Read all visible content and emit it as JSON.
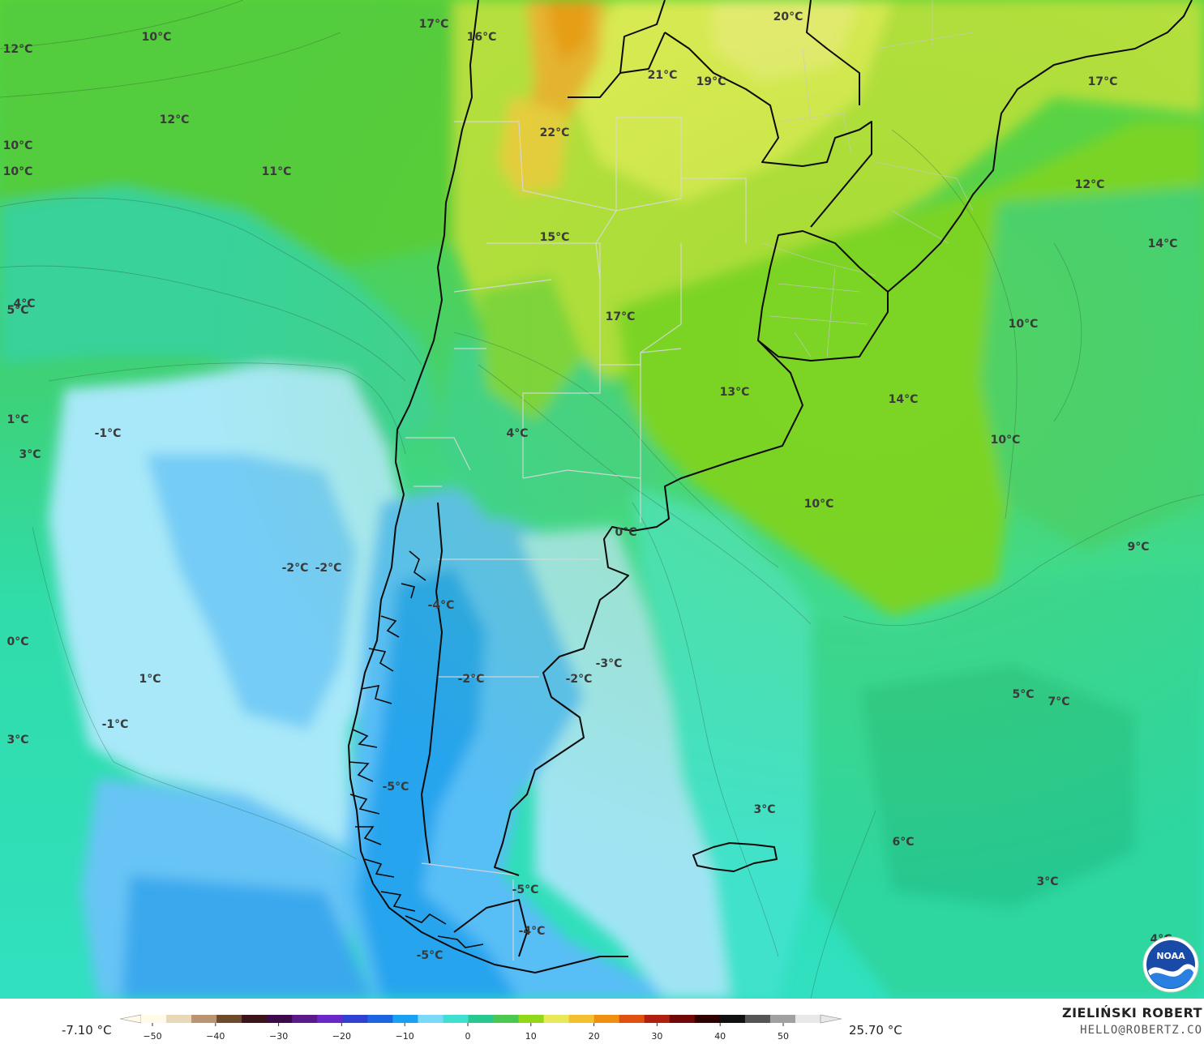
{
  "map": {
    "labels": [
      {
        "id": "l01",
        "text": "17°C"
      },
      {
        "id": "l02",
        "text": "16°C"
      },
      {
        "id": "l03",
        "text": "20°C"
      },
      {
        "id": "l04",
        "text": "10°C"
      },
      {
        "id": "l05",
        "text": "12°C"
      },
      {
        "id": "l06",
        "text": "21°C"
      },
      {
        "id": "l07",
        "text": "19°C"
      },
      {
        "id": "l08",
        "text": "17°C"
      },
      {
        "id": "l09",
        "text": "12°C"
      },
      {
        "id": "l10",
        "text": "22°C"
      },
      {
        "id": "l11",
        "text": "10°C"
      },
      {
        "id": "l12",
        "text": "10°C"
      },
      {
        "id": "l13",
        "text": "11°C"
      },
      {
        "id": "l14",
        "text": "12°C"
      },
      {
        "id": "l15",
        "text": "14°C"
      },
      {
        "id": "l16",
        "text": "15°C"
      },
      {
        "id": "l17",
        "text": "4°C"
      },
      {
        "id": "l18",
        "text": "5°C"
      },
      {
        "id": "l19",
        "text": "17°C"
      },
      {
        "id": "l20",
        "text": "10°C"
      },
      {
        "id": "l21",
        "text": "13°C"
      },
      {
        "id": "l22",
        "text": "14°C"
      },
      {
        "id": "l23",
        "text": "1°C"
      },
      {
        "id": "l24",
        "text": "-1°C"
      },
      {
        "id": "l25",
        "text": "4°C"
      },
      {
        "id": "l26",
        "text": "10°C"
      },
      {
        "id": "l27",
        "text": "3°C"
      },
      {
        "id": "l28",
        "text": "10°C"
      },
      {
        "id": "l29",
        "text": "0°C"
      },
      {
        "id": "l30",
        "text": "9°C"
      },
      {
        "id": "l31",
        "text": "-2°C"
      },
      {
        "id": "l32",
        "text": "-2°C"
      },
      {
        "id": "l33",
        "text": "-4°C"
      },
      {
        "id": "l34",
        "text": "0°C"
      },
      {
        "id": "l35",
        "text": "-3°C"
      },
      {
        "id": "l36",
        "text": "1°C"
      },
      {
        "id": "l37",
        "text": "-2°C"
      },
      {
        "id": "l38",
        "text": "-2°C"
      },
      {
        "id": "l39",
        "text": "5°C"
      },
      {
        "id": "l40",
        "text": "7°C"
      },
      {
        "id": "l41",
        "text": "-1°C"
      },
      {
        "id": "l42",
        "text": "3°C"
      },
      {
        "id": "l43",
        "text": "-5°C"
      },
      {
        "id": "l44",
        "text": "3°C"
      },
      {
        "id": "l45",
        "text": "6°C"
      },
      {
        "id": "l46",
        "text": "-5°C"
      },
      {
        "id": "l47",
        "text": "3°C"
      },
      {
        "id": "l48",
        "text": "-4°C"
      },
      {
        "id": "l49",
        "text": "4°C"
      },
      {
        "id": "l50",
        "text": "-5°C"
      }
    ]
  },
  "legend": {
    "min_label": "-7.10 °C",
    "max_label": "25.70 °C",
    "ticks": [
      "−50",
      "−40",
      "−30",
      "−20",
      "−10",
      "0",
      "10",
      "20",
      "30",
      "40",
      "50"
    ],
    "colors": [
      "#fffbe8",
      "#e8d8b8",
      "#b89470",
      "#6e4a2c",
      "#3a1418",
      "#3c0a4a",
      "#5a1a8a",
      "#6a28c8",
      "#3040d0",
      "#1c64e0",
      "#1aa0f0",
      "#7ad8f8",
      "#40e0d0",
      "#28c890",
      "#4cc850",
      "#90d818",
      "#e8e858",
      "#f4c030",
      "#f09010",
      "#e05010",
      "#b02010",
      "#700808",
      "#300000",
      "#101010",
      "#555555",
      "#a0a0a0",
      "#e8e8e8"
    ]
  },
  "branding": {
    "name": "ZIELIŃSKI ROBERT",
    "email": "HELLO@ROBERTZ.CO",
    "logo_text": "NOAA",
    "logo_icon": "noaa-logo-icon"
  }
}
